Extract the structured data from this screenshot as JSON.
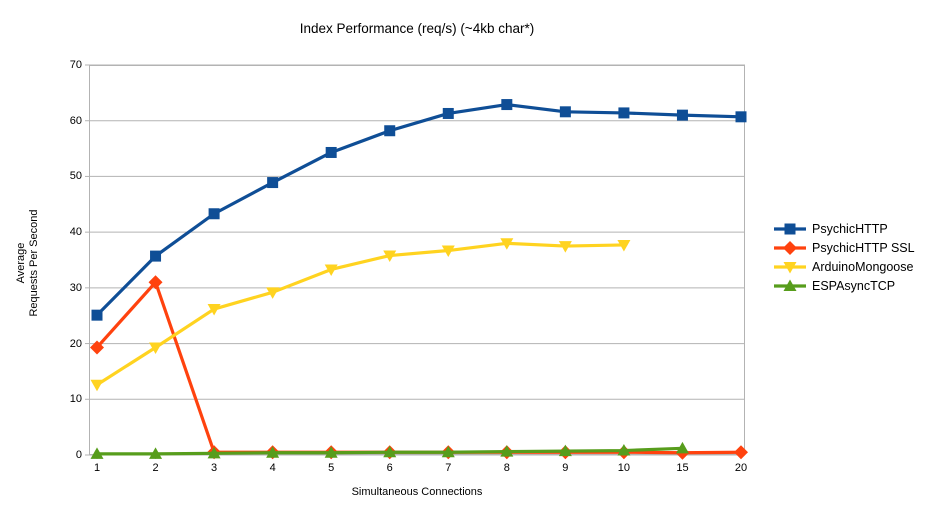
{
  "chart_data": {
    "type": "line",
    "title": "Index Performance (req/s) (~4kb char*)",
    "xlabel": "Simultaneous Connections",
    "ylabel_line1": "Average",
    "ylabel_line2": "Requests Per Second",
    "categories": [
      "1",
      "2",
      "3",
      "4",
      "5",
      "6",
      "7",
      "8",
      "9",
      "10",
      "15",
      "20"
    ],
    "ylim": [
      0,
      70
    ],
    "ytick_step": 10,
    "grid": "horizontal",
    "grid_color": "#b3b3b3",
    "legend_position": "right",
    "series": [
      {
        "name": "PsychicHTTP",
        "color": "#0f4e96",
        "marker": "square",
        "values": [
          25.1,
          35.7,
          43.3,
          48.9,
          54.3,
          58.2,
          61.3,
          62.9,
          61.6,
          61.4,
          61.0,
          60.7
        ]
      },
      {
        "name": "PsychicHTTP SSL",
        "color": "#ff420e",
        "marker": "diamond",
        "values": [
          19.3,
          31.0,
          0.5,
          0.5,
          0.5,
          0.5,
          0.5,
          0.5,
          0.5,
          0.5,
          0.4,
          0.5
        ]
      },
      {
        "name": "ArduinoMongoose",
        "color": "#ffd320",
        "marker": "triangle-down",
        "values": [
          12.6,
          19.3,
          26.2,
          29.2,
          33.3,
          35.8,
          36.7,
          38.0,
          37.5,
          37.7,
          null,
          null
        ]
      },
      {
        "name": "ESPAsyncTCP",
        "color": "#579d1c",
        "marker": "triangle-up",
        "values": [
          0.2,
          0.2,
          0.3,
          0.4,
          0.4,
          0.5,
          0.5,
          0.6,
          0.7,
          0.8,
          1.2,
          null
        ]
      }
    ]
  }
}
